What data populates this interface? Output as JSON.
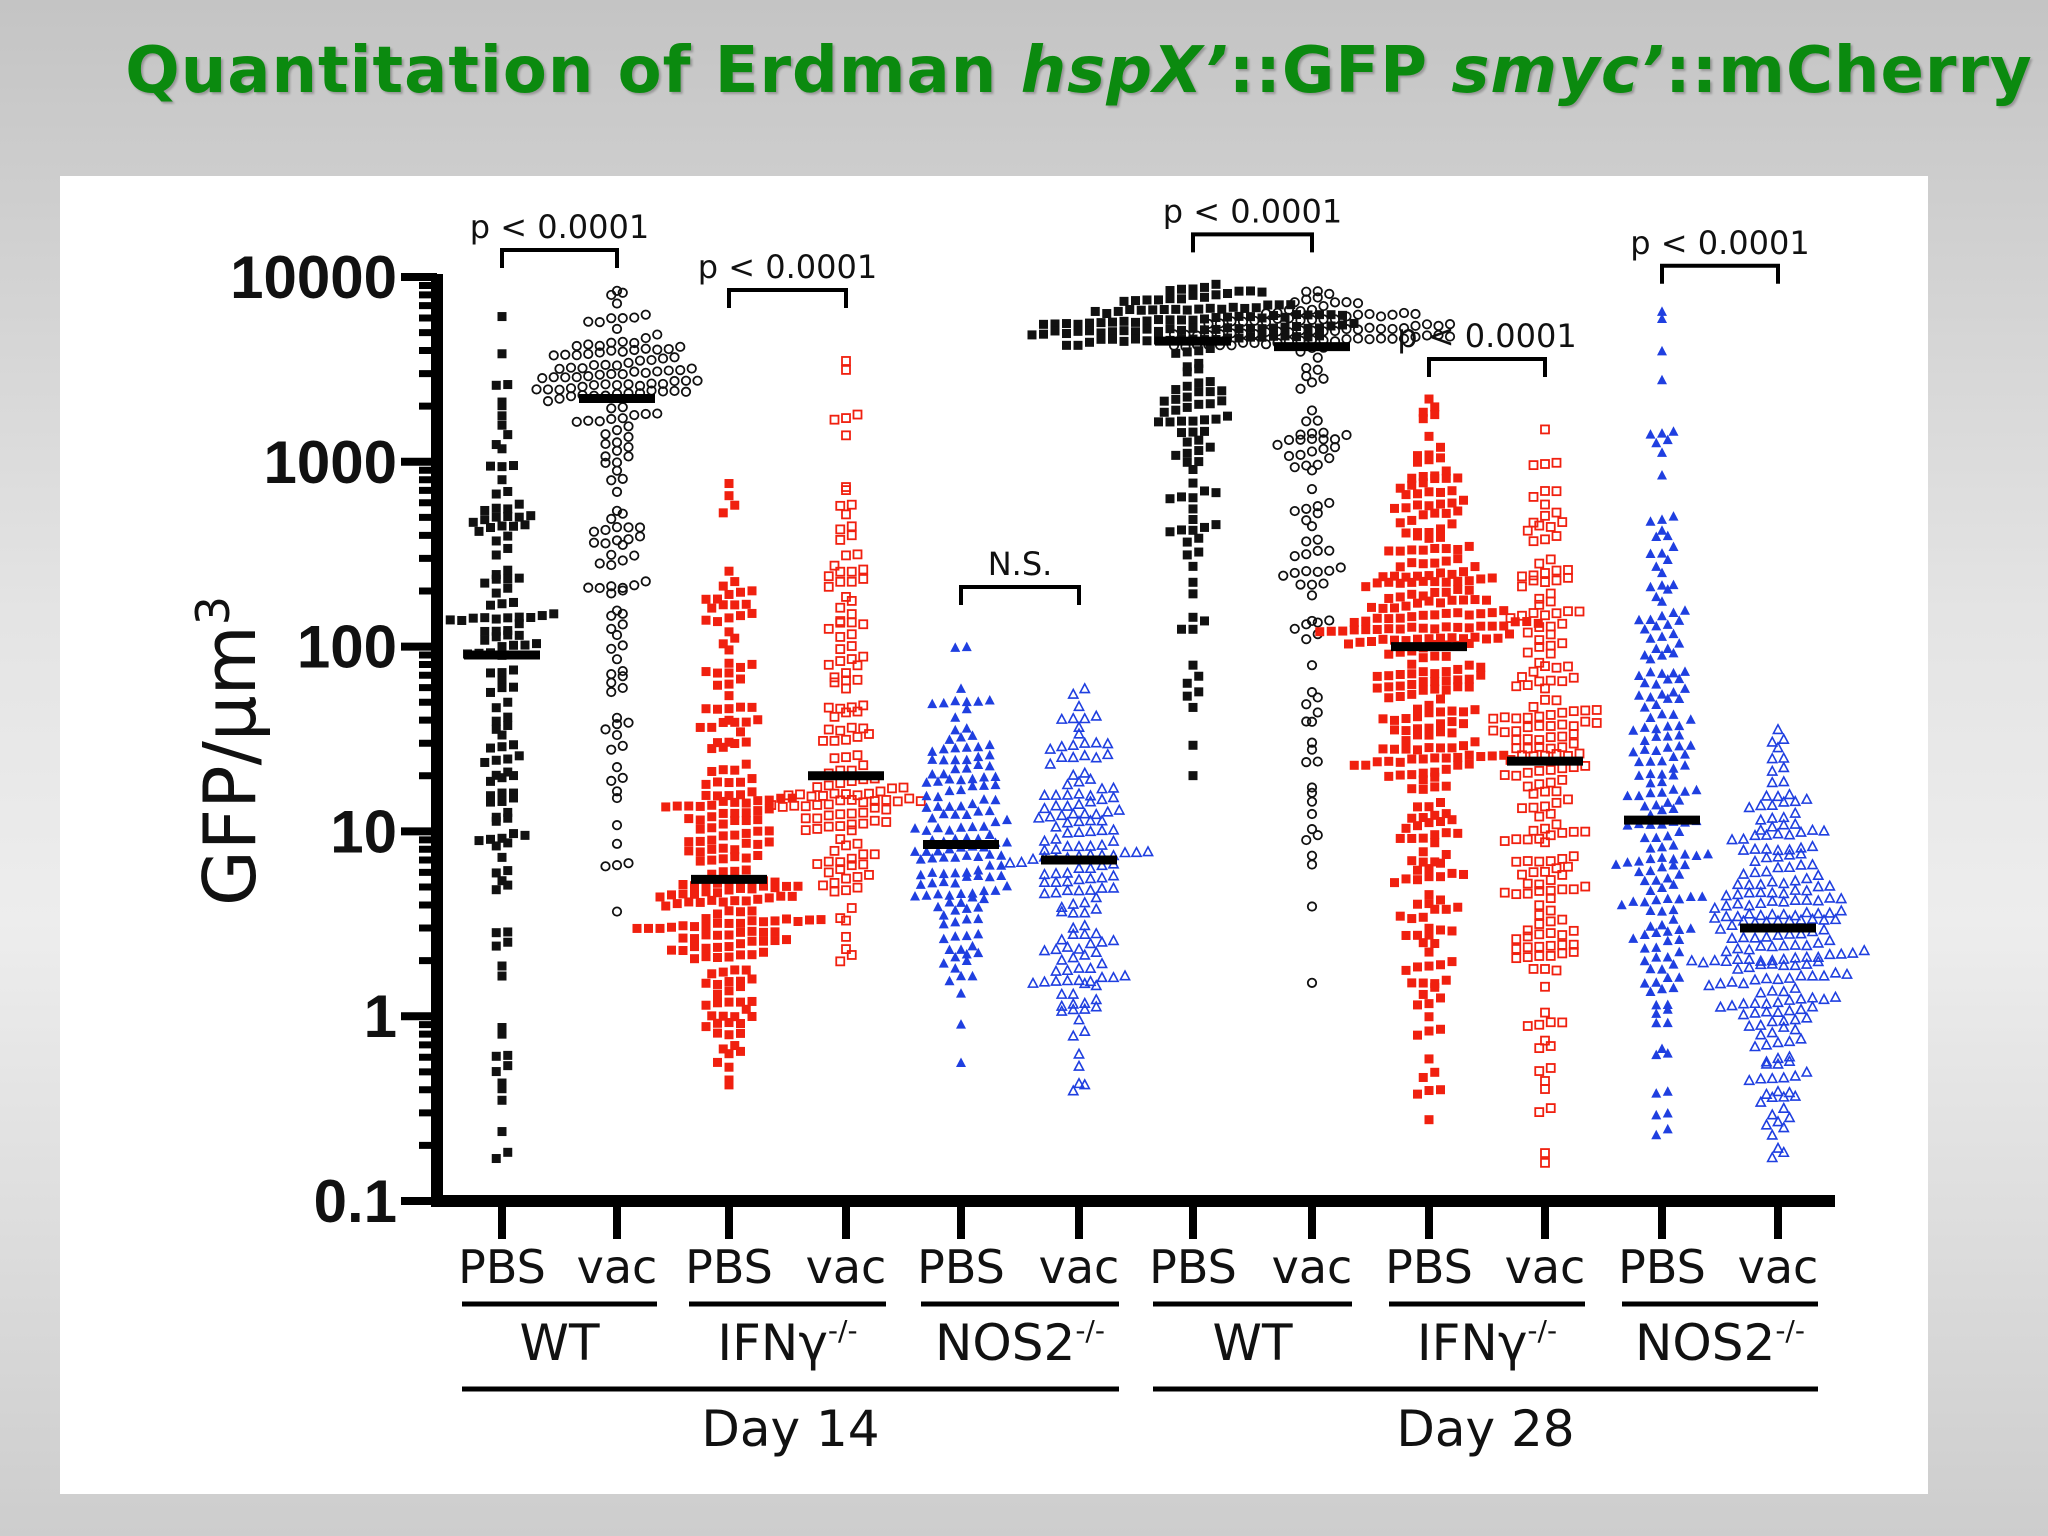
{
  "title": {
    "prefix": "Quantitation of Erdman ",
    "gene1": "hspX’",
    "mid1": "::GFP ",
    "gene2": "smyc’",
    "mid2": "::mCherry"
  },
  "colors": {
    "title": "#0b8a0f",
    "WT": "#111111",
    "IFNg": "#f0200f",
    "NOS2": "#1f3fe0",
    "median": "#000000"
  },
  "chart_data": {
    "type": "scatter",
    "subtype": "dot-plot with median bars",
    "y_scale": "log",
    "ylim": [
      0.1,
      10000
    ],
    "ylabel": "GFP/µm³",
    "yticks": [
      "10000",
      "1000",
      "100",
      "10",
      "1",
      "0.1"
    ],
    "categories": [
      "PBS",
      "vac",
      "PBS",
      "vac",
      "PBS",
      "vac",
      "PBS",
      "vac",
      "PBS",
      "vac",
      "PBS",
      "vac"
    ],
    "groups": [
      {
        "label": "WT",
        "day": "Day 14"
      },
      {
        "label": "IFNγ",
        "sup": "-/-",
        "day": "Day 14"
      },
      {
        "label": "NOS2",
        "sup": "-/-",
        "day": "Day 14"
      },
      {
        "label": "WT",
        "day": "Day 28"
      },
      {
        "label": "IFNγ",
        "sup": "-/-",
        "day": "Day 28"
      },
      {
        "label": "NOS2",
        "sup": "-/-",
        "day": "Day 28"
      }
    ],
    "days": [
      "Day 14",
      "Day 28"
    ],
    "series": [
      {
        "day": "Day 14",
        "genotype": "WT",
        "treatment": "PBS",
        "marker": "square-filled",
        "color_key": "WT",
        "median": 90,
        "min": 0.17,
        "max": 6000,
        "n": 140
      },
      {
        "day": "Day 14",
        "genotype": "WT",
        "treatment": "vac",
        "marker": "circle-open",
        "color_key": "WT",
        "median": 2200,
        "min": 3.7,
        "max": 8500,
        "n": 170
      },
      {
        "day": "Day 14",
        "genotype": "IFNγ-/-",
        "treatment": "PBS",
        "marker": "square-filled",
        "color_key": "IFNg",
        "median": 5.5,
        "min": 0.42,
        "max": 750,
        "n": 240
      },
      {
        "day": "Day 14",
        "genotype": "IFNγ-/-",
        "treatment": "vac",
        "marker": "square-open",
        "color_key": "IFNg",
        "median": 20,
        "min": 2,
        "max": 3500,
        "n": 150
      },
      {
        "day": "Day 14",
        "genotype": "NOS2-/-",
        "treatment": "PBS",
        "marker": "triangle-filled",
        "color_key": "NOS2",
        "median": 8.5,
        "min": 0.55,
        "max": 100,
        "n": 150
      },
      {
        "day": "Day 14",
        "genotype": "NOS2-/-",
        "treatment": "vac",
        "marker": "triangle-open",
        "color_key": "NOS2",
        "median": 7,
        "min": 0.4,
        "max": 60,
        "n": 160
      },
      {
        "day": "Day 28",
        "genotype": "WT",
        "treatment": "PBS",
        "marker": "square-filled",
        "color_key": "WT",
        "median": 4500,
        "min": 20,
        "max": 9000,
        "n": 190
      },
      {
        "day": "Day 28",
        "genotype": "WT",
        "treatment": "vac",
        "marker": "circle-open",
        "color_key": "WT",
        "median": 4200,
        "min": 1.5,
        "max": 8500,
        "n": 170
      },
      {
        "day": "Day 28",
        "genotype": "IFNγ-/-",
        "treatment": "PBS",
        "marker": "square-filled",
        "color_key": "IFNg",
        "median": 100,
        "min": 0.28,
        "max": 2200,
        "n": 330
      },
      {
        "day": "Day 28",
        "genotype": "IFNγ-/-",
        "treatment": "vac",
        "marker": "square-open",
        "color_key": "IFNg",
        "median": 24,
        "min": 0.16,
        "max": 1500,
        "n": 210
      },
      {
        "day": "Day 28",
        "genotype": "NOS2-/-",
        "treatment": "PBS",
        "marker": "triangle-filled",
        "color_key": "NOS2",
        "median": 11.5,
        "min": 0.23,
        "max": 6500,
        "n": 200
      },
      {
        "day": "Day 28",
        "genotype": "NOS2-/-",
        "treatment": "vac",
        "marker": "triangle-open",
        "color_key": "NOS2",
        "median": 3,
        "min": 0.17,
        "max": 35,
        "n": 230
      }
    ],
    "comparisons": [
      {
        "between": [
          0,
          1
        ],
        "label": "p < 0.0001",
        "y": 14000
      },
      {
        "between": [
          2,
          3
        ],
        "label": "p < 0.0001",
        "y": 8500
      },
      {
        "between": [
          4,
          5
        ],
        "label": "N.S.",
        "y": 210
      },
      {
        "between": [
          6,
          7
        ],
        "label": "p < 0.0001",
        "y": 17000
      },
      {
        "between": [
          8,
          9
        ],
        "label": "p < 0.0001",
        "y": 3600
      },
      {
        "between": [
          10,
          11
        ],
        "label": "p < 0.0001",
        "y": 11500
      }
    ]
  }
}
